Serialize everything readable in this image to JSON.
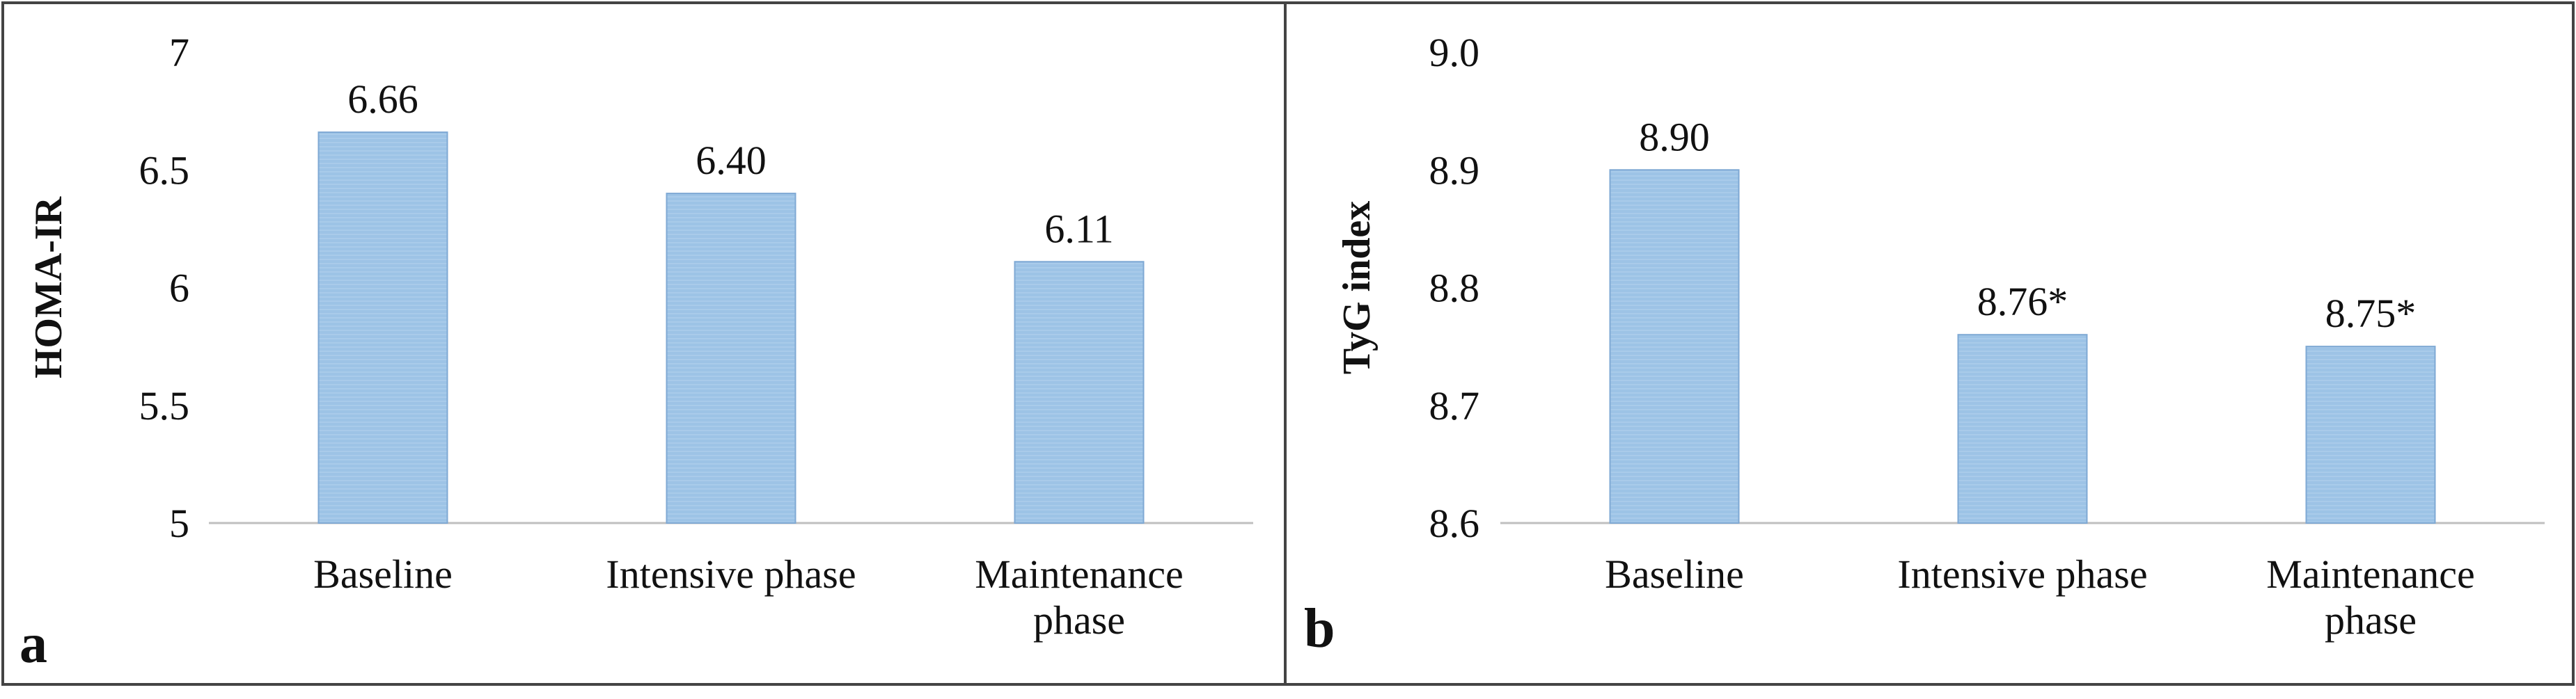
{
  "bar_color": "#9dc3e6",
  "bar_edge_color": "#7fa9d4",
  "chart_data": [
    {
      "type": "bar",
      "panel_label": "a",
      "title": "",
      "xlabel": "",
      "ylabel": "HOMA-IR",
      "ylim": [
        5,
        7
      ],
      "ticks": [
        5,
        5.5,
        6,
        6.5,
        7
      ],
      "tick_labels": [
        "5",
        "5.5",
        "6",
        "6.5",
        "7"
      ],
      "categories": [
        [
          "Baseline"
        ],
        [
          "Intensive phase"
        ],
        [
          "Maintenance",
          "phase"
        ]
      ],
      "values": [
        6.66,
        6.4,
        6.11
      ],
      "data_labels": [
        "6.66",
        "6.40",
        "6.11"
      ]
    },
    {
      "type": "bar",
      "panel_label": "b",
      "title": "",
      "xlabel": "",
      "ylabel": "TyG index",
      "ylim": [
        8.6,
        9.0
      ],
      "ticks": [
        8.6,
        8.7,
        8.8,
        8.9,
        9.0
      ],
      "tick_labels": [
        "8.6",
        "8.7",
        "8.8",
        "8.9",
        "9.0"
      ],
      "categories": [
        [
          "Baseline"
        ],
        [
          "Intensive phase"
        ],
        [
          "Maintenance",
          "phase"
        ]
      ],
      "values": [
        8.9,
        8.76,
        8.75
      ],
      "data_labels": [
        "8.90",
        "8.76*",
        "8.75*"
      ]
    }
  ]
}
